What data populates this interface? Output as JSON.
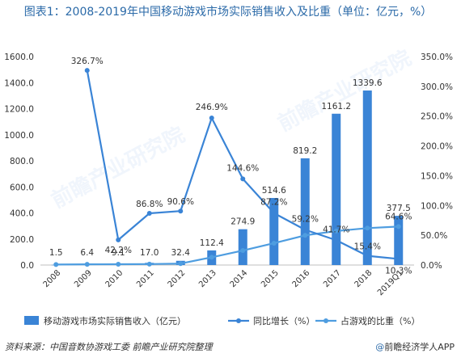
{
  "title": "图表1：2008-2019年中国移动游戏市场实际销售收入及比重（单位：亿元，%）",
  "footer": {
    "source": "资料来源：中国音数协游戏工委 前瞻产业研究院整理",
    "brand_mark": "@",
    "brand": "前瞻经济学人APP"
  },
  "watermark": "前瞻产业研究院",
  "colors": {
    "bar": "#3a84d6",
    "growth": "#3a84d6",
    "share": "#4e9de0",
    "axis_text": "#333333"
  },
  "chart_data": {
    "type": "bar",
    "categories": [
      "2008",
      "2009",
      "2010",
      "2011",
      "2012",
      "2013",
      "2014",
      "2015",
      "2016",
      "2017",
      "2018",
      "2019Q1"
    ],
    "series": [
      {
        "name": "移动游戏市场实际销售收入（亿元）",
        "type": "bar",
        "axis": "left",
        "values": [
          1.5,
          6.4,
          9.1,
          17.0,
          32.4,
          112.4,
          274.9,
          514.6,
          819.2,
          1161.2,
          1339.6,
          377.5
        ],
        "labels": [
          "1.5",
          "6.4",
          "9.1",
          "17.0",
          "32.4",
          "112.4",
          "274.9",
          "514.6",
          "819.2",
          "1161.2",
          "1339.6",
          "377.5"
        ]
      },
      {
        "name": "同比增长（%）",
        "type": "line",
        "axis": "right",
        "values": [
          null,
          326.7,
          42.2,
          86.8,
          90.6,
          246.9,
          144.6,
          87.2,
          59.2,
          41.7,
          15.4,
          10.3
        ],
        "labels": [
          "",
          "326.7%",
          "42.2%",
          "86.8%",
          "90.6%",
          "246.9%",
          "144.6%",
          "87.2%",
          "59.2%",
          "41.7%",
          "15.4%",
          "10.3%"
        ]
      },
      {
        "name": "占游戏的比重（%）",
        "type": "line",
        "axis": "right",
        "values": [
          0.8,
          1.2,
          1.4,
          1.6,
          2.4,
          13.0,
          24.4,
          36.7,
          49.8,
          57.1,
          62.0,
          64.6
        ],
        "labels": [
          "",
          "",
          "",
          "",
          "",
          "",
          "",
          "",
          "",
          "",
          "",
          "64.6%"
        ]
      }
    ],
    "y_left": {
      "min": 0,
      "max": 1600,
      "ticks": [
        "0.0",
        "200.0",
        "400.0",
        "600.0",
        "800.0",
        "1000.0",
        "1200.0",
        "1400.0",
        "1600.0"
      ]
    },
    "y_right": {
      "min": 0,
      "max": 350,
      "ticks": [
        "0.0%",
        "50.0%",
        "100.0%",
        "150.0%",
        "200.0%",
        "250.0%",
        "300.0%",
        "350.0%"
      ]
    },
    "grid": false,
    "legend_position": "bottom"
  }
}
